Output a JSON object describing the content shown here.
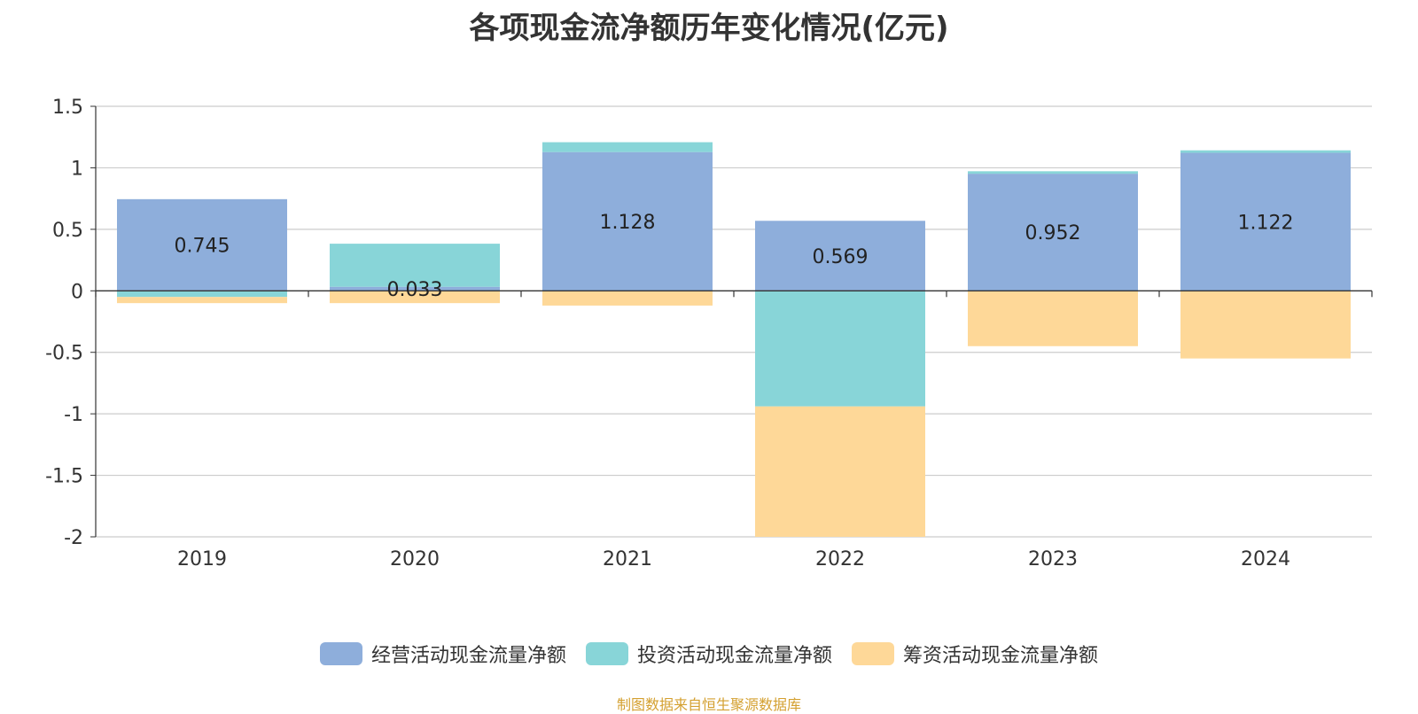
{
  "chart_data": {
    "type": "bar",
    "stacked": true,
    "title": "各项现金流净额历年变化情况(亿元)",
    "categories": [
      "2019",
      "2020",
      "2021",
      "2022",
      "2023",
      "2024"
    ],
    "series": [
      {
        "name": "经营活动现金流量净额",
        "color": "#8eaedb",
        "values": [
          0.745,
          0.033,
          1.128,
          0.569,
          0.952,
          1.122
        ]
      },
      {
        "name": "投资活动现金流量净额",
        "color": "#88d5d8",
        "values": [
          -0.05,
          0.35,
          0.08,
          -0.94,
          0.02,
          0.02
        ]
      },
      {
        "name": "筹资活动现金流量净额",
        "color": "#fed898",
        "values": [
          -0.05,
          -0.1,
          -0.12,
          -1.06,
          -0.45,
          -0.55
        ]
      }
    ],
    "data_labels": [
      "0.745",
      "0.033",
      "1.128",
      "0.569",
      "0.952",
      "1.122"
    ],
    "yticks": [
      "1.5",
      "1",
      "0.5",
      "0",
      "-0.5",
      "-1",
      "-1.5",
      "-2"
    ],
    "ylim": [
      -2,
      1.5
    ],
    "grid": true,
    "legend_position": "bottom"
  },
  "source_note": "制图数据来自恒生聚源数据库"
}
